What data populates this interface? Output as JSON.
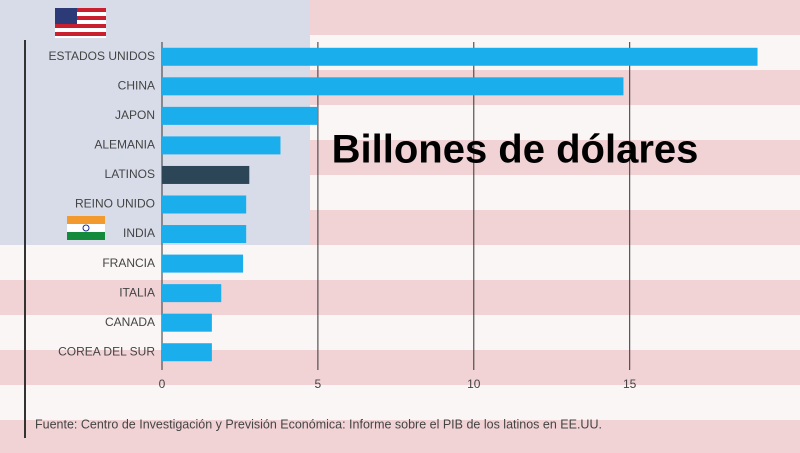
{
  "chart_data": {
    "type": "bar",
    "orientation": "horizontal",
    "title": "Billones de dólares",
    "source": "Fuente: Centro de Investigación y Previsión Económica: Informe sobre el PIB de los latinos en EE.UU.",
    "categories": [
      "ESTADOS UNIDOS",
      "CHINA",
      "JAPON",
      "ALEMANIA",
      "LATINOS",
      "REINO UNIDO",
      "INDIA",
      "FRANCIA",
      "ITALIA",
      "CANADA",
      "COREA DEL SUR"
    ],
    "values": [
      19.1,
      14.8,
      5.0,
      3.8,
      2.8,
      2.7,
      2.7,
      2.6,
      1.9,
      1.6,
      1.6
    ],
    "colors": [
      "#1aaeed",
      "#1aaeed",
      "#1aaeed",
      "#1aaeed",
      "#2d4657",
      "#1aaeed",
      "#1aaeed",
      "#1aaeed",
      "#1aaeed",
      "#1aaeed",
      "#1aaeed"
    ],
    "xlim": [
      0,
      19.5
    ],
    "xticks": [
      0,
      5,
      10,
      15
    ],
    "grid": true
  }
}
